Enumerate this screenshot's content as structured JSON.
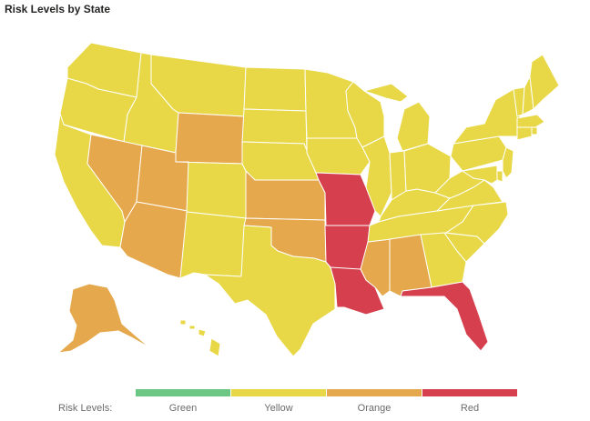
{
  "title": "Risk Levels by State",
  "legend": {
    "title": "Risk Levels:",
    "items": [
      {
        "key": "green",
        "label": "Green",
        "color": "#6cc785"
      },
      {
        "key": "yellow",
        "label": "Yellow",
        "color": "#e8d847"
      },
      {
        "key": "orange",
        "label": "Orange",
        "color": "#e5a84d"
      },
      {
        "key": "red",
        "label": "Red",
        "color": "#d6404e"
      }
    ]
  },
  "states": {
    "WA": "yellow",
    "OR": "yellow",
    "CA": "yellow",
    "ID": "yellow",
    "NV": "orange",
    "MT": "yellow",
    "WY": "orange",
    "UT": "orange",
    "AZ": "orange",
    "CO": "yellow",
    "NM": "yellow",
    "ND": "yellow",
    "SD": "yellow",
    "NE": "yellow",
    "KS": "orange",
    "OK": "orange",
    "TX": "yellow",
    "MN": "yellow",
    "IA": "yellow",
    "MO": "red",
    "AR": "red",
    "LA": "red",
    "WI": "yellow",
    "IL": "yellow",
    "MS": "orange",
    "MI": "yellow",
    "IN": "yellow",
    "KY": "yellow",
    "TN": "yellow",
    "AL": "orange",
    "OH": "yellow",
    "GA": "yellow",
    "FL": "red",
    "SC": "yellow",
    "NC": "yellow",
    "VA": "yellow",
    "WV": "yellow",
    "PA": "yellow",
    "NY": "yellow",
    "VT": "yellow",
    "NH": "yellow",
    "ME": "yellow",
    "MA": "yellow",
    "RI": "yellow",
    "CT": "yellow",
    "NJ": "yellow",
    "DE": "yellow",
    "MD": "yellow",
    "AK": "orange",
    "HI": "yellow"
  }
}
